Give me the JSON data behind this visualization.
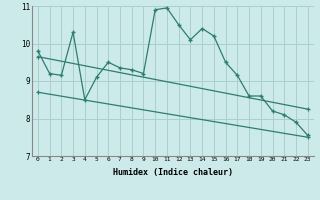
{
  "title": "",
  "xlabel": "Humidex (Indice chaleur)",
  "background_color": "#cdeaea",
  "grid_color": "#aacfcf",
  "line_color": "#2e7d6e",
  "xlim": [
    -0.5,
    23.5
  ],
  "ylim": [
    7,
    11
  ],
  "yticks": [
    7,
    8,
    9,
    10,
    11
  ],
  "xticks": [
    0,
    1,
    2,
    3,
    4,
    5,
    6,
    7,
    8,
    9,
    10,
    11,
    12,
    13,
    14,
    15,
    16,
    17,
    18,
    19,
    20,
    21,
    22,
    23
  ],
  "series1_x": [
    0,
    1,
    2,
    3,
    4,
    5,
    6,
    7,
    8,
    9,
    10,
    11,
    12,
    13,
    14,
    15,
    16,
    17,
    18,
    19,
    20,
    21,
    22,
    23
  ],
  "series1_y": [
    9.8,
    9.2,
    9.15,
    10.3,
    8.5,
    9.1,
    9.5,
    9.35,
    9.3,
    9.2,
    10.9,
    10.95,
    10.5,
    10.1,
    10.4,
    10.2,
    9.5,
    9.15,
    8.6,
    8.6,
    8.2,
    8.1,
    7.9,
    7.55
  ],
  "series2_x": [
    0,
    23
  ],
  "series2_y": [
    8.7,
    7.5
  ],
  "series3_x": [
    0,
    23
  ],
  "series3_y": [
    9.65,
    8.25
  ]
}
